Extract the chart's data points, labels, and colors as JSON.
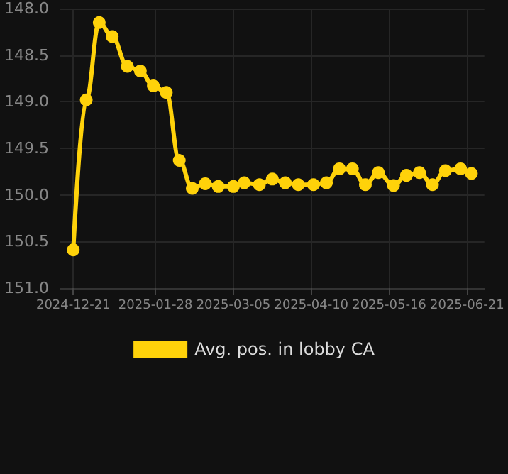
{
  "chart_data": {
    "type": "line",
    "x": [
      "2024-12-21",
      "2024-12-27",
      "2025-01-02",
      "2025-01-08",
      "2025-01-15",
      "2025-01-21",
      "2025-01-27",
      "2025-02-02",
      "2025-02-08",
      "2025-02-14",
      "2025-02-20",
      "2025-02-26",
      "2025-03-05",
      "2025-03-10",
      "2025-03-17",
      "2025-03-23",
      "2025-03-29",
      "2025-04-04",
      "2025-04-11",
      "2025-04-17",
      "2025-04-23",
      "2025-04-29",
      "2025-05-05",
      "2025-05-11",
      "2025-05-18",
      "2025-05-24",
      "2025-05-30",
      "2025-06-05",
      "2025-06-11",
      "2025-06-18",
      "2025-06-23"
    ],
    "series": [
      {
        "name": "Avg. pos. in lobby CA",
        "color": "#ffd20a",
        "values": [
          150.59,
          148.98,
          148.15,
          148.3,
          148.62,
          148.67,
          148.83,
          148.9,
          149.63,
          149.93,
          149.88,
          149.91,
          149.91,
          149.87,
          149.89,
          149.83,
          149.87,
          149.89,
          149.89,
          149.87,
          149.72,
          149.72,
          149.89,
          149.76,
          149.9,
          149.79,
          149.76,
          149.89,
          149.74,
          149.72,
          149.77
        ]
      }
    ],
    "xlim": [
      "2024-12-15",
      "2025-06-29"
    ],
    "xticks": [
      "2024-12-21",
      "2025-01-28",
      "2025-03-05",
      "2025-04-10",
      "2025-05-16",
      "2025-06-21"
    ],
    "ylim": [
      151.0,
      148.0
    ],
    "yticks": [
      {
        "value": 148,
        "label": "148.0"
      },
      {
        "value": 148.5,
        "label": "148.5"
      },
      {
        "value": 149,
        "label": "149.0"
      },
      {
        "value": 149.5,
        "label": "149.5"
      },
      {
        "value": 150,
        "label": "150.0"
      },
      {
        "value": 150.5,
        "label": "150.5"
      },
      {
        "value": 151,
        "label": "151.0"
      }
    ],
    "grid": true,
    "legend": "bottom",
    "marker": "circle",
    "line_style": "solid"
  }
}
